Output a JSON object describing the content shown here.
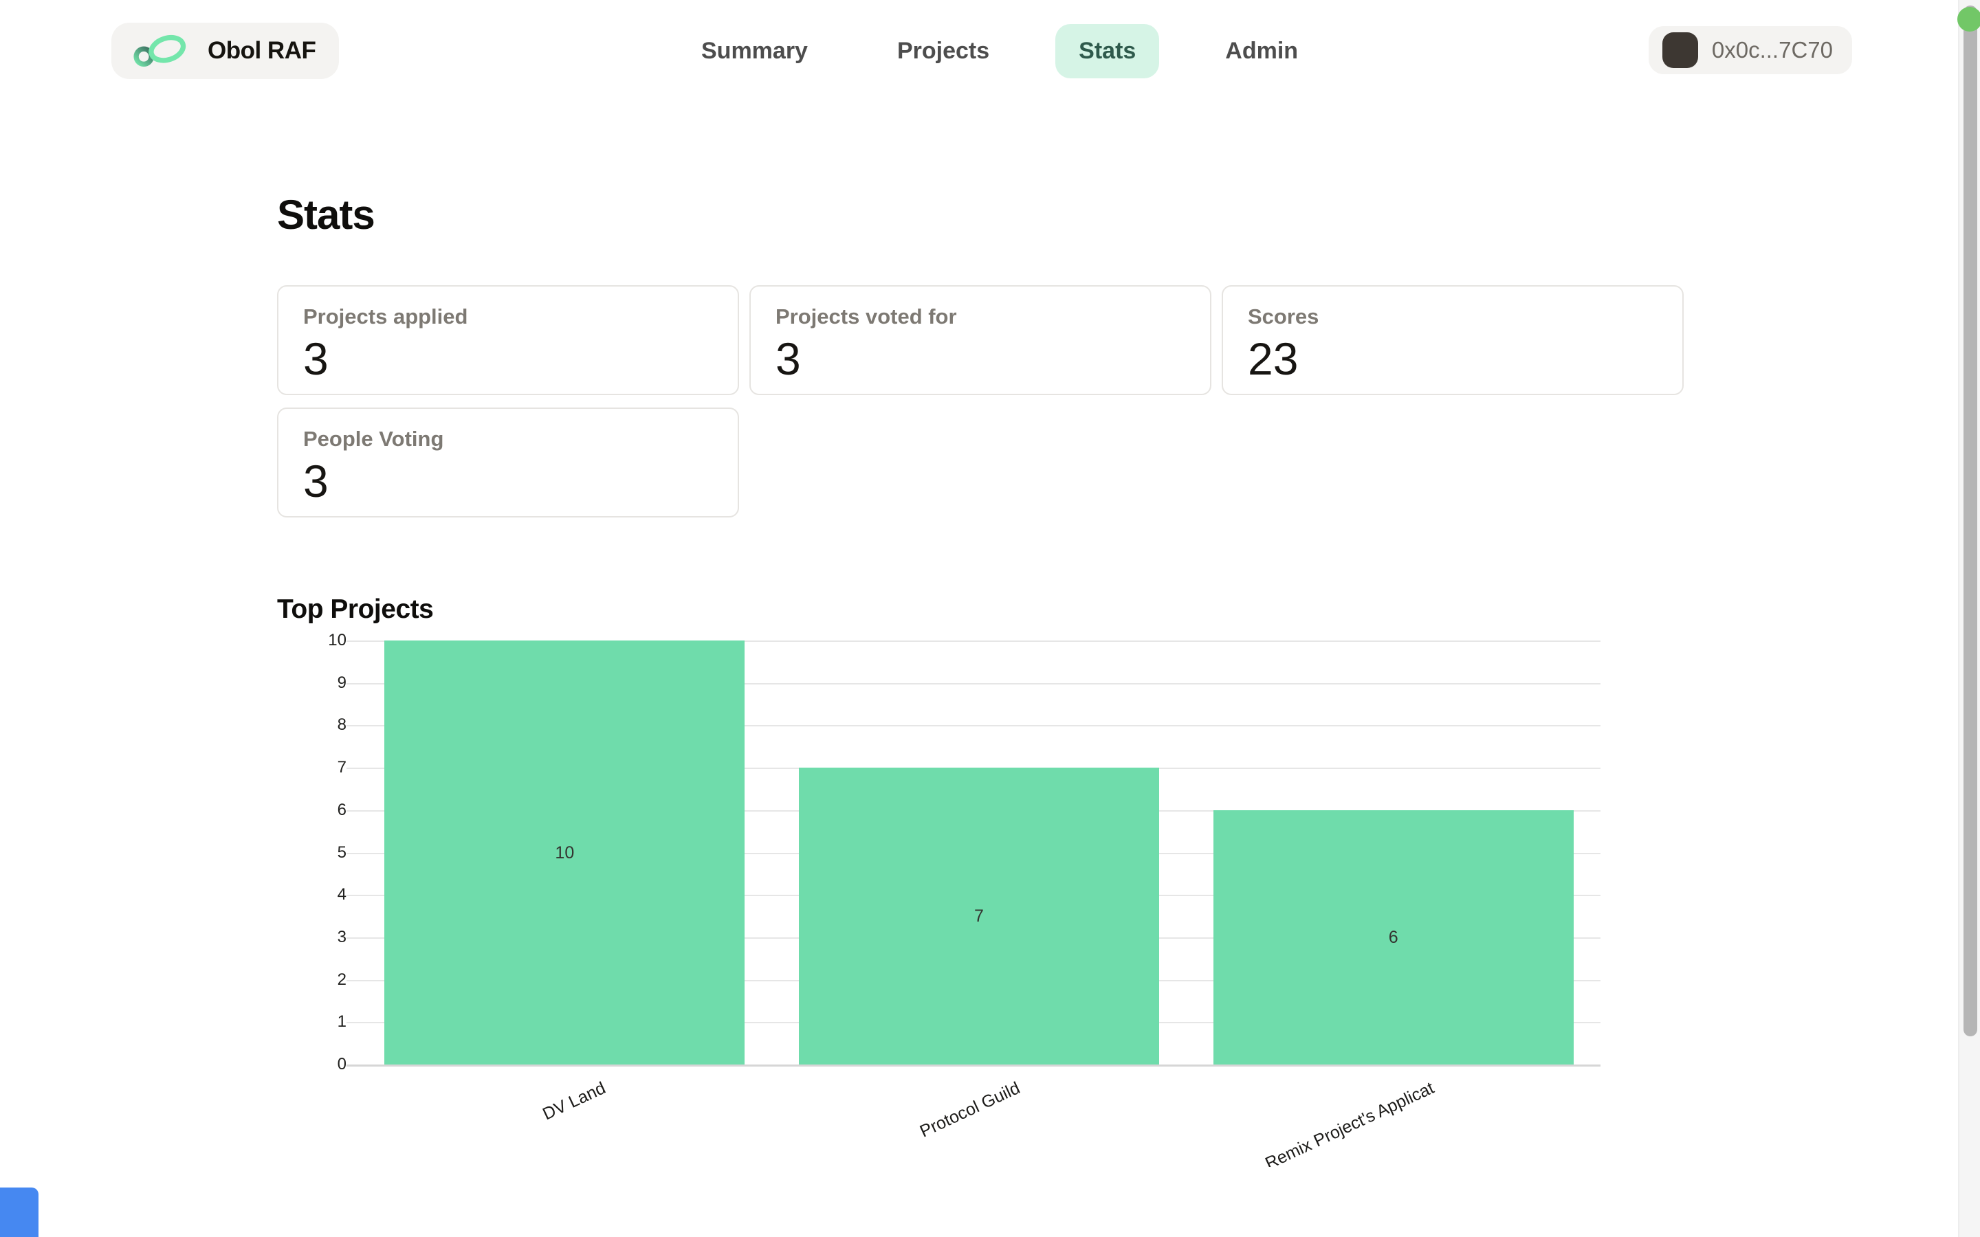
{
  "header": {
    "brand": {
      "label": "Obol RAF",
      "logo_icon": "obol-infinity-logo",
      "logo_color": "#74e6ab",
      "logo_dark": "#3a6b5e"
    },
    "nav": [
      {
        "label": "Summary",
        "active": false
      },
      {
        "label": "Projects",
        "active": false
      },
      {
        "label": "Stats",
        "active": true
      },
      {
        "label": "Admin",
        "active": false
      }
    ],
    "active_tab_bg": "#d6f4e6",
    "active_tab_text": "#2f5a4c",
    "wallet": {
      "address": "0x0c...7C70",
      "avatar_color": "#3d3732"
    }
  },
  "page": {
    "title": "Stats"
  },
  "stat_cards": [
    {
      "label": "Projects applied",
      "value": "3"
    },
    {
      "label": "Projects voted for",
      "value": "3"
    },
    {
      "label": "Scores",
      "value": "23"
    },
    {
      "label": "People Voting",
      "value": "3"
    }
  ],
  "chart_section": {
    "title": "Top Projects"
  },
  "chart_data": {
    "type": "bar",
    "title": "Top Projects",
    "categories": [
      "DV Land",
      "Protocol Guild",
      "Remix Project's Applicat"
    ],
    "values": [
      10,
      7,
      6
    ],
    "value_labels": [
      "10",
      "7",
      "6"
    ],
    "xlabel": "",
    "ylabel": "",
    "ylim": [
      0,
      10
    ],
    "yticks": [
      0,
      1,
      2,
      3,
      4,
      5,
      6,
      7,
      8,
      9,
      10
    ],
    "grid": "horizontal-only",
    "legend": "none",
    "bar_color": "#6fdcab",
    "xtick_rotation_deg": -25
  },
  "scrollbar": {
    "dot_color": "#72c767"
  },
  "corner_chip_color": "#4688f1"
}
